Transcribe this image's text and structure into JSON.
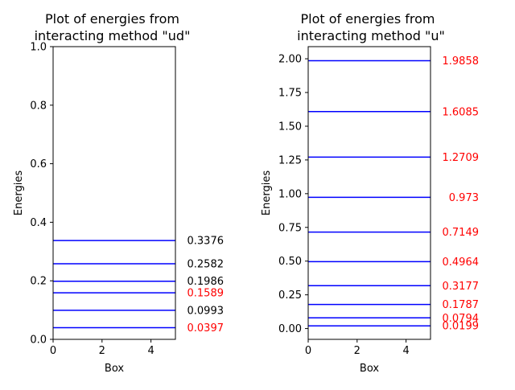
{
  "chart_data": [
    {
      "type": "line",
      "title_line1": "Plot of energies from",
      "title_line2": "interacting method \"ud\"",
      "xlabel": "Box",
      "ylabel": "Energies",
      "xlim": [
        0,
        5
      ],
      "ylim": [
        0,
        1.0
      ],
      "xticks": [
        0,
        2,
        4
      ],
      "xtick_labels": [
        "0",
        "2",
        "4"
      ],
      "yticks": [
        0.0,
        0.2,
        0.4,
        0.6,
        0.8,
        1.0
      ],
      "ytick_labels": [
        "0.0",
        "0.2",
        "0.4",
        "0.6",
        "0.8",
        "1.0"
      ],
      "levels": [
        0.0397,
        0.0993,
        0.1589,
        0.1986,
        0.2582,
        0.3376
      ],
      "labels": [
        {
          "value": 0.0397,
          "text": "0.0397",
          "color": "#ff0000"
        },
        {
          "value": 0.0993,
          "text": "0.0993",
          "color": "#000000"
        },
        {
          "value": 0.1589,
          "text": "0.1589",
          "color": "#ff0000"
        },
        {
          "value": 0.1986,
          "text": "0.1986",
          "color": "#000000"
        },
        {
          "value": 0.2582,
          "text": "0.2582",
          "color": "#000000"
        },
        {
          "value": 0.3376,
          "text": "0.3376",
          "color": "#000000"
        }
      ],
      "line_color": "#0000ff"
    },
    {
      "type": "line",
      "title_line1": "Plot of energies from",
      "title_line2": "interacting method \"u\"",
      "xlabel": "Box",
      "ylabel": "Energies",
      "xlim": [
        0,
        5
      ],
      "ylim": [
        -0.08,
        2.09
      ],
      "xticks": [
        0,
        2,
        4
      ],
      "xtick_labels": [
        "0",
        "2",
        "4"
      ],
      "yticks": [
        0.0,
        0.25,
        0.5,
        0.75,
        1.0,
        1.25,
        1.5,
        1.75,
        2.0
      ],
      "ytick_labels": [
        "0.00",
        "0.25",
        "0.50",
        "0.75",
        "1.00",
        "1.25",
        "1.50",
        "1.75",
        "2.00"
      ],
      "levels": [
        0.0199,
        0.0794,
        0.1787,
        0.3177,
        0.4964,
        0.7149,
        0.973,
        1.2709,
        1.6085,
        1.9858
      ],
      "labels": [
        {
          "value": 0.0199,
          "text": "0.0199",
          "color": "#ff0000"
        },
        {
          "value": 0.0794,
          "text": "0.0794",
          "color": "#ff0000"
        },
        {
          "value": 0.1787,
          "text": "0.1787",
          "color": "#ff0000"
        },
        {
          "value": 0.3177,
          "text": "0.3177",
          "color": "#ff0000"
        },
        {
          "value": 0.4964,
          "text": "0.4964",
          "color": "#ff0000"
        },
        {
          "value": 0.7149,
          "text": "0.7149",
          "color": "#ff0000"
        },
        {
          "value": 0.973,
          "text": "0.973",
          "color": "#ff0000"
        },
        {
          "value": 1.2709,
          "text": "1.2709",
          "color": "#ff0000"
        },
        {
          "value": 1.6085,
          "text": "1.6085",
          "color": "#ff0000"
        },
        {
          "value": 1.9858,
          "text": "1.9858",
          "color": "#ff0000"
        }
      ],
      "line_color": "#0000ff"
    }
  ]
}
